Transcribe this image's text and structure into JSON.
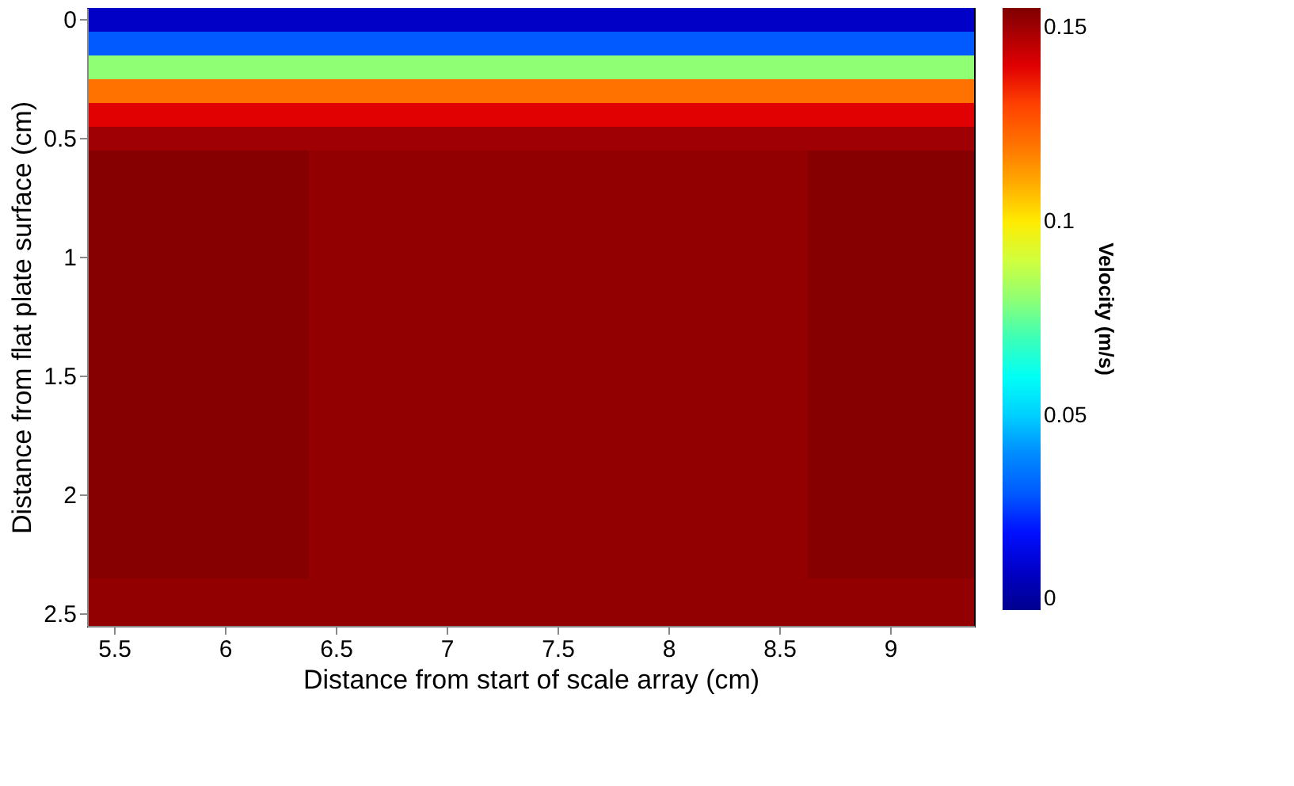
{
  "chart_data": {
    "type": "heatmap",
    "xlabel": "Distance from start of scale array (cm)",
    "ylabel": "Distance from flat plate surface (cm)",
    "clabel": "Velocity (m/s)",
    "categories": [
      "5.5",
      null,
      "6",
      null,
      "6.5",
      null,
      "7",
      null,
      "7.5",
      null,
      "8",
      null,
      "8.5",
      null,
      "9",
      null
    ],
    "y_categories": [
      "0",
      null,
      null,
      null,
      null,
      "0.5",
      null,
      null,
      null,
      null,
      "1",
      null,
      null,
      null,
      null,
      "1.5",
      null,
      null,
      null,
      null,
      "2",
      null,
      null,
      null,
      null,
      "2.5"
    ],
    "cells": [
      [
        0.01,
        0.01,
        0.01,
        0.01,
        0.01,
        0.01,
        0.01,
        0.01,
        0.01,
        0.01,
        0.01,
        0.01,
        0.01,
        0.01,
        0.01,
        0.01
      ],
      [
        0.03,
        0.03,
        0.03,
        0.03,
        0.03,
        0.03,
        0.03,
        0.03,
        0.03,
        0.03,
        0.03,
        0.03,
        0.03,
        0.03,
        0.03,
        0.03
      ],
      [
        0.08,
        0.08,
        0.08,
        0.08,
        0.08,
        0.08,
        0.08,
        0.08,
        0.08,
        0.08,
        0.08,
        0.08,
        0.08,
        0.08,
        0.08,
        0.08
      ],
      [
        0.12,
        0.12,
        0.12,
        0.12,
        0.12,
        0.12,
        0.12,
        0.12,
        0.12,
        0.12,
        0.12,
        0.12,
        0.12,
        0.12,
        0.12,
        0.12
      ],
      [
        0.14,
        0.14,
        0.14,
        0.14,
        0.14,
        0.14,
        0.14,
        0.14,
        0.14,
        0.14,
        0.14,
        0.14,
        0.14,
        0.14,
        0.14,
        0.14
      ],
      [
        0.15,
        0.15,
        0.15,
        0.15,
        0.15,
        0.15,
        0.15,
        0.15,
        0.15,
        0.15,
        0.15,
        0.15,
        0.15,
        0.15,
        0.15,
        0.15
      ],
      [
        0.154,
        0.154,
        0.154,
        0.154,
        0.152,
        0.152,
        0.152,
        0.152,
        0.152,
        0.152,
        0.152,
        0.152,
        0.152,
        0.154,
        0.154,
        0.154
      ],
      [
        0.154,
        0.154,
        0.154,
        0.154,
        0.152,
        0.152,
        0.152,
        0.152,
        0.152,
        0.152,
        0.152,
        0.152,
        0.152,
        0.154,
        0.154,
        0.154
      ],
      [
        0.154,
        0.154,
        0.154,
        0.154,
        0.152,
        0.152,
        0.152,
        0.152,
        0.152,
        0.152,
        0.152,
        0.152,
        0.152,
        0.154,
        0.154,
        0.154
      ],
      [
        0.154,
        0.154,
        0.154,
        0.154,
        0.152,
        0.152,
        0.152,
        0.152,
        0.152,
        0.152,
        0.152,
        0.152,
        0.152,
        0.154,
        0.154,
        0.154
      ],
      [
        0.154,
        0.154,
        0.154,
        0.154,
        0.152,
        0.152,
        0.152,
        0.152,
        0.152,
        0.152,
        0.152,
        0.152,
        0.152,
        0.154,
        0.154,
        0.154
      ],
      [
        0.154,
        0.154,
        0.154,
        0.154,
        0.152,
        0.152,
        0.152,
        0.152,
        0.152,
        0.152,
        0.152,
        0.152,
        0.152,
        0.154,
        0.154,
        0.154
      ],
      [
        0.154,
        0.154,
        0.154,
        0.154,
        0.152,
        0.152,
        0.152,
        0.152,
        0.152,
        0.152,
        0.152,
        0.152,
        0.152,
        0.154,
        0.154,
        0.154
      ],
      [
        0.154,
        0.154,
        0.154,
        0.154,
        0.152,
        0.152,
        0.152,
        0.152,
        0.152,
        0.152,
        0.152,
        0.152,
        0.152,
        0.154,
        0.154,
        0.154
      ],
      [
        0.154,
        0.154,
        0.154,
        0.154,
        0.152,
        0.152,
        0.152,
        0.152,
        0.152,
        0.152,
        0.152,
        0.152,
        0.152,
        0.154,
        0.154,
        0.154
      ],
      [
        0.154,
        0.154,
        0.154,
        0.154,
        0.152,
        0.152,
        0.152,
        0.152,
        0.152,
        0.152,
        0.152,
        0.152,
        0.152,
        0.154,
        0.154,
        0.154
      ],
      [
        0.154,
        0.154,
        0.154,
        0.154,
        0.152,
        0.152,
        0.152,
        0.152,
        0.152,
        0.152,
        0.152,
        0.152,
        0.152,
        0.154,
        0.154,
        0.154
      ],
      [
        0.154,
        0.154,
        0.154,
        0.154,
        0.152,
        0.152,
        0.152,
        0.152,
        0.152,
        0.152,
        0.152,
        0.152,
        0.152,
        0.154,
        0.154,
        0.154
      ],
      [
        0.154,
        0.154,
        0.154,
        0.154,
        0.152,
        0.152,
        0.152,
        0.152,
        0.152,
        0.152,
        0.152,
        0.152,
        0.152,
        0.154,
        0.154,
        0.154
      ],
      [
        0.154,
        0.154,
        0.154,
        0.154,
        0.152,
        0.152,
        0.152,
        0.152,
        0.152,
        0.152,
        0.152,
        0.152,
        0.152,
        0.154,
        0.154,
        0.154
      ],
      [
        0.154,
        0.154,
        0.154,
        0.154,
        0.152,
        0.152,
        0.152,
        0.152,
        0.152,
        0.152,
        0.152,
        0.152,
        0.152,
        0.154,
        0.154,
        0.154
      ],
      [
        0.154,
        0.154,
        0.154,
        0.154,
        0.152,
        0.152,
        0.152,
        0.152,
        0.152,
        0.152,
        0.152,
        0.152,
        0.152,
        0.154,
        0.154,
        0.154
      ],
      [
        0.154,
        0.154,
        0.154,
        0.154,
        0.152,
        0.152,
        0.152,
        0.152,
        0.152,
        0.152,
        0.152,
        0.152,
        0.152,
        0.154,
        0.154,
        0.154
      ],
      [
        0.154,
        0.154,
        0.154,
        0.154,
        0.152,
        0.152,
        0.152,
        0.152,
        0.152,
        0.152,
        0.152,
        0.152,
        0.152,
        0.154,
        0.154,
        0.154
      ],
      [
        0.152,
        0.152,
        0.152,
        0.152,
        0.152,
        0.152,
        0.152,
        0.152,
        0.152,
        0.152,
        0.152,
        0.152,
        0.152,
        0.152,
        0.152,
        0.152
      ],
      [
        0.152,
        0.152,
        0.152,
        0.152,
        0.152,
        0.152,
        0.152,
        0.152,
        0.152,
        0.152,
        0.152,
        0.152,
        0.152,
        0.152,
        0.152,
        0.152
      ]
    ],
    "clim": [
      0,
      0.155
    ],
    "cticks": [
      0,
      0.05,
      0.1,
      0.15
    ]
  }
}
